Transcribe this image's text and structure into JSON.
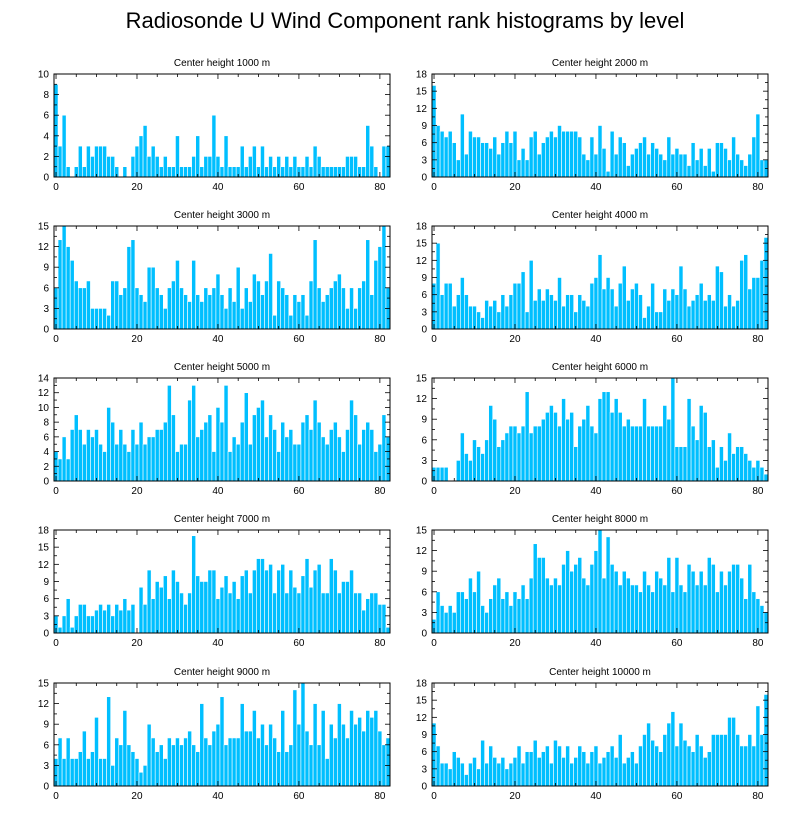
{
  "figure": {
    "title": "Radiosonde U Wind Component rank histograms by level"
  },
  "style": {
    "bar_color": "#00bfff",
    "bar_edge": "#ffffff",
    "axis_color": "#000000"
  },
  "chart_data": [
    {
      "type": "bar",
      "title": "Center height 1000 m",
      "xlabel": "",
      "ylabel": "",
      "xlim": [
        -0.5,
        82.5
      ],
      "ylim": [
        0,
        10
      ],
      "xticks": [
        0,
        20,
        40,
        60,
        80
      ],
      "yticks": [
        0,
        2,
        4,
        6,
        8,
        10
      ],
      "values": [
        9,
        3,
        6,
        1,
        0,
        1,
        3,
        1,
        3,
        2,
        3,
        3,
        3,
        2,
        2,
        1,
        0,
        1,
        0,
        2,
        3,
        4,
        5,
        2,
        3,
        2,
        1,
        2,
        1,
        1,
        4,
        1,
        1,
        1,
        2,
        4,
        1,
        2,
        2,
        6,
        2,
        1,
        4,
        1,
        1,
        1,
        3,
        1,
        2,
        3,
        1,
        3,
        1,
        2,
        1,
        2,
        1,
        2,
        1,
        2,
        1,
        1,
        2,
        1,
        3,
        2,
        1,
        1,
        1,
        1,
        1,
        1,
        2,
        2,
        2,
        1,
        1,
        5,
        3,
        1,
        0,
        3,
        3
      ]
    },
    {
      "type": "bar",
      "title": "Center height 2000 m",
      "xlabel": "",
      "ylabel": "",
      "xlim": [
        -0.5,
        82.5
      ],
      "ylim": [
        0,
        18
      ],
      "xticks": [
        0,
        20,
        40,
        60,
        80
      ],
      "yticks": [
        0,
        3,
        6,
        9,
        12,
        15,
        18
      ],
      "values": [
        16,
        9,
        8,
        7,
        8,
        6,
        3,
        11,
        4,
        8,
        7,
        7,
        6,
        6,
        5,
        7,
        4,
        6,
        8,
        6,
        8,
        3,
        5,
        3,
        7,
        8,
        4,
        6,
        7,
        8,
        7,
        9,
        8,
        8,
        8,
        8,
        7,
        4,
        3,
        7,
        4,
        9,
        5,
        1,
        8,
        4,
        7,
        6,
        2,
        4,
        5,
        6,
        7,
        4,
        6,
        5,
        4,
        3,
        7,
        4,
        5,
        4,
        4,
        2,
        6,
        3,
        5,
        2,
        5,
        1,
        6,
        6,
        5,
        3,
        7,
        4,
        3,
        2,
        4,
        7,
        11,
        3,
        3
      ]
    },
    {
      "type": "bar",
      "title": "Center height 3000 m",
      "xlabel": "",
      "ylabel": "",
      "xlim": [
        -0.5,
        82.5
      ],
      "ylim": [
        0,
        15
      ],
      "xticks": [
        0,
        20,
        40,
        60,
        80
      ],
      "yticks": [
        0,
        3,
        6,
        9,
        12,
        15
      ],
      "values": [
        6,
        13,
        15,
        12,
        10,
        7,
        6,
        6,
        7,
        3,
        3,
        3,
        3,
        2,
        7,
        7,
        5,
        6,
        12,
        13,
        6,
        5,
        4,
        9,
        9,
        6,
        5,
        3,
        6,
        7,
        10,
        6,
        5,
        4,
        10,
        5,
        4,
        6,
        5,
        6,
        8,
        5,
        3,
        6,
        4,
        9,
        3,
        6,
        4,
        8,
        7,
        5,
        7,
        11,
        2,
        7,
        6,
        5,
        2,
        5,
        4,
        5,
        2,
        7,
        13,
        6,
        4,
        5,
        6,
        7,
        8,
        6,
        3,
        6,
        3,
        6,
        7,
        13,
        5,
        10,
        12,
        15,
        6
      ]
    },
    {
      "type": "bar",
      "title": "Center height 4000 m",
      "xlabel": "",
      "ylabel": "",
      "xlim": [
        -0.5,
        82.5
      ],
      "ylim": [
        0,
        18
      ],
      "xticks": [
        0,
        20,
        40,
        60,
        80
      ],
      "yticks": [
        0,
        3,
        6,
        9,
        12,
        15,
        18
      ],
      "values": [
        8,
        15,
        6,
        8,
        8,
        4,
        6,
        9,
        6,
        4,
        4,
        3,
        2,
        5,
        4,
        5,
        3,
        6,
        4,
        6,
        8,
        8,
        10,
        3,
        12,
        5,
        7,
        5,
        7,
        6,
        5,
        9,
        4,
        6,
        6,
        3,
        6,
        5,
        4,
        8,
        9,
        13,
        7,
        9,
        7,
        4,
        8,
        11,
        5,
        7,
        8,
        6,
        2,
        4,
        8,
        3,
        3,
        7,
        5,
        7,
        6,
        11,
        7,
        4,
        5,
        6,
        8,
        5,
        6,
        5,
        11,
        10,
        4,
        6,
        4,
        5,
        12,
        13,
        7,
        9,
        9,
        12,
        16
      ]
    },
    {
      "type": "bar",
      "title": "Center height 5000 m",
      "xlabel": "",
      "ylabel": "",
      "xlim": [
        -0.5,
        82.5
      ],
      "ylim": [
        0,
        14
      ],
      "xticks": [
        0,
        20,
        40,
        60,
        80
      ],
      "yticks": [
        0,
        2,
        4,
        6,
        8,
        10,
        12,
        14
      ],
      "values": [
        4,
        3,
        6,
        3,
        7,
        9,
        7,
        5,
        7,
        6,
        7,
        5,
        4,
        10,
        8,
        5,
        7,
        5,
        4,
        7,
        5,
        8,
        5,
        6,
        6,
        7,
        7,
        8,
        13,
        9,
        4,
        5,
        5,
        11,
        13,
        6,
        7,
        8,
        9,
        4,
        10,
        8,
        13,
        4,
        6,
        5,
        8,
        12,
        5,
        9,
        10,
        11,
        6,
        9,
        7,
        4,
        8,
        6,
        7,
        5,
        5,
        8,
        9,
        7,
        11,
        8,
        6,
        5,
        7,
        8,
        6,
        4,
        7,
        11,
        9,
        5,
        7,
        8,
        7,
        4,
        5,
        9,
        6
      ]
    },
    {
      "type": "bar",
      "title": "Center height 6000 m",
      "xlabel": "",
      "ylabel": "",
      "xlim": [
        -0.5,
        82.5
      ],
      "ylim": [
        0,
        15
      ],
      "xticks": [
        0,
        20,
        40,
        60,
        80
      ],
      "yticks": [
        0,
        3,
        6,
        9,
        12,
        15
      ],
      "values": [
        2,
        2,
        2,
        2,
        0,
        0,
        3,
        7,
        4,
        3,
        6,
        5,
        4,
        6,
        11,
        9,
        5,
        6,
        7,
        8,
        8,
        7,
        8,
        13,
        7,
        8,
        8,
        9,
        10,
        11,
        10,
        8,
        12,
        9,
        10,
        5,
        8,
        9,
        11,
        8,
        7,
        12,
        13,
        13,
        10,
        12,
        10,
        8,
        9,
        8,
        8,
        8,
        12,
        8,
        8,
        8,
        8,
        11,
        9,
        15,
        5,
        5,
        5,
        12,
        8,
        6,
        11,
        10,
        5,
        6,
        2,
        5,
        3,
        7,
        4,
        5,
        5,
        4,
        3,
        2,
        3,
        2,
        1
      ]
    },
    {
      "type": "bar",
      "title": "Center height 7000 m",
      "xlabel": "",
      "ylabel": "",
      "xlim": [
        -0.5,
        82.5
      ],
      "ylim": [
        0,
        18
      ],
      "xticks": [
        0,
        20,
        40,
        60,
        80
      ],
      "yticks": [
        0,
        3,
        6,
        9,
        12,
        15,
        18
      ],
      "values": [
        3,
        1,
        3,
        6,
        1,
        3,
        5,
        5,
        3,
        3,
        4,
        5,
        4,
        5,
        3,
        5,
        4,
        6,
        4,
        5,
        0,
        8,
        5,
        11,
        6,
        9,
        8,
        10,
        6,
        11,
        9,
        7,
        5,
        7,
        17,
        10,
        9,
        9,
        11,
        11,
        6,
        8,
        10,
        7,
        9,
        6,
        10,
        11,
        7,
        11,
        13,
        13,
        11,
        12,
        7,
        11,
        12,
        7,
        11,
        8,
        7,
        10,
        13,
        8,
        11,
        12,
        7,
        7,
        13,
        11,
        7,
        9,
        9,
        11,
        7,
        7,
        4,
        6,
        7,
        7,
        5,
        5,
        1
      ]
    },
    {
      "type": "bar",
      "title": "Center height 8000 m",
      "xlabel": "",
      "ylabel": "",
      "xlim": [
        -0.5,
        82.5
      ],
      "ylim": [
        0,
        15
      ],
      "xticks": [
        0,
        20,
        40,
        60,
        80
      ],
      "yticks": [
        0,
        3,
        6,
        9,
        12,
        15
      ],
      "values": [
        2,
        6,
        4,
        3,
        4,
        3,
        6,
        6,
        5,
        8,
        6,
        9,
        4,
        3,
        5,
        7,
        8,
        5,
        6,
        4,
        6,
        5,
        7,
        5,
        8,
        13,
        11,
        11,
        8,
        7,
        8,
        7,
        10,
        12,
        9,
        10,
        11,
        8,
        7,
        10,
        12,
        15,
        8,
        14,
        10,
        9,
        7,
        9,
        8,
        7,
        7,
        6,
        9,
        7,
        6,
        9,
        8,
        7,
        11,
        6,
        11,
        7,
        6,
        10,
        9,
        7,
        9,
        7,
        11,
        10,
        6,
        9,
        7,
        9,
        10,
        10,
        8,
        5,
        10,
        6,
        5,
        4,
        3
      ]
    },
    {
      "type": "bar",
      "title": "Center height 9000 m",
      "xlabel": "",
      "ylabel": "",
      "xlim": [
        -0.5,
        82.5
      ],
      "ylim": [
        0,
        15
      ],
      "xticks": [
        0,
        20,
        40,
        60,
        80
      ],
      "yticks": [
        0,
        3,
        6,
        9,
        12,
        15
      ],
      "values": [
        4,
        7,
        4,
        7,
        4,
        4,
        5,
        8,
        4,
        5,
        10,
        4,
        4,
        13,
        3,
        7,
        6,
        11,
        6,
        5,
        4,
        2,
        3,
        9,
        7,
        5,
        6,
        4,
        7,
        6,
        7,
        6,
        7,
        8,
        6,
        5,
        12,
        7,
        6,
        8,
        9,
        13,
        6,
        7,
        7,
        7,
        12,
        8,
        8,
        11,
        7,
        9,
        6,
        9,
        7,
        5,
        11,
        5,
        6,
        14,
        9,
        15,
        8,
        6,
        12,
        6,
        11,
        4,
        9,
        7,
        12,
        9,
        7,
        11,
        9,
        10,
        8,
        11,
        10,
        11,
        8,
        6,
        7
      ]
    },
    {
      "type": "bar",
      "title": "Center height 10000 m",
      "xlabel": "",
      "ylabel": "",
      "xlim": [
        -0.5,
        82.5
      ],
      "ylim": [
        0,
        18
      ],
      "xticks": [
        0,
        20,
        40,
        60,
        80
      ],
      "yticks": [
        0,
        3,
        6,
        9,
        12,
        15,
        18
      ],
      "values": [
        11,
        7,
        4,
        4,
        3,
        6,
        5,
        4,
        2,
        4,
        5,
        3,
        8,
        4,
        7,
        5,
        4,
        5,
        3,
        4,
        5,
        7,
        4,
        6,
        6,
        8,
        5,
        6,
        7,
        4,
        8,
        7,
        5,
        7,
        4,
        5,
        7,
        6,
        4,
        6,
        7,
        4,
        5,
        6,
        7,
        5,
        9,
        4,
        5,
        6,
        4,
        7,
        9,
        11,
        8,
        7,
        6,
        9,
        11,
        13,
        7,
        11,
        8,
        7,
        6,
        9,
        7,
        5,
        6,
        9,
        9,
        9,
        9,
        12,
        12,
        9,
        7,
        7,
        9,
        7,
        14,
        9,
        16
      ]
    }
  ]
}
